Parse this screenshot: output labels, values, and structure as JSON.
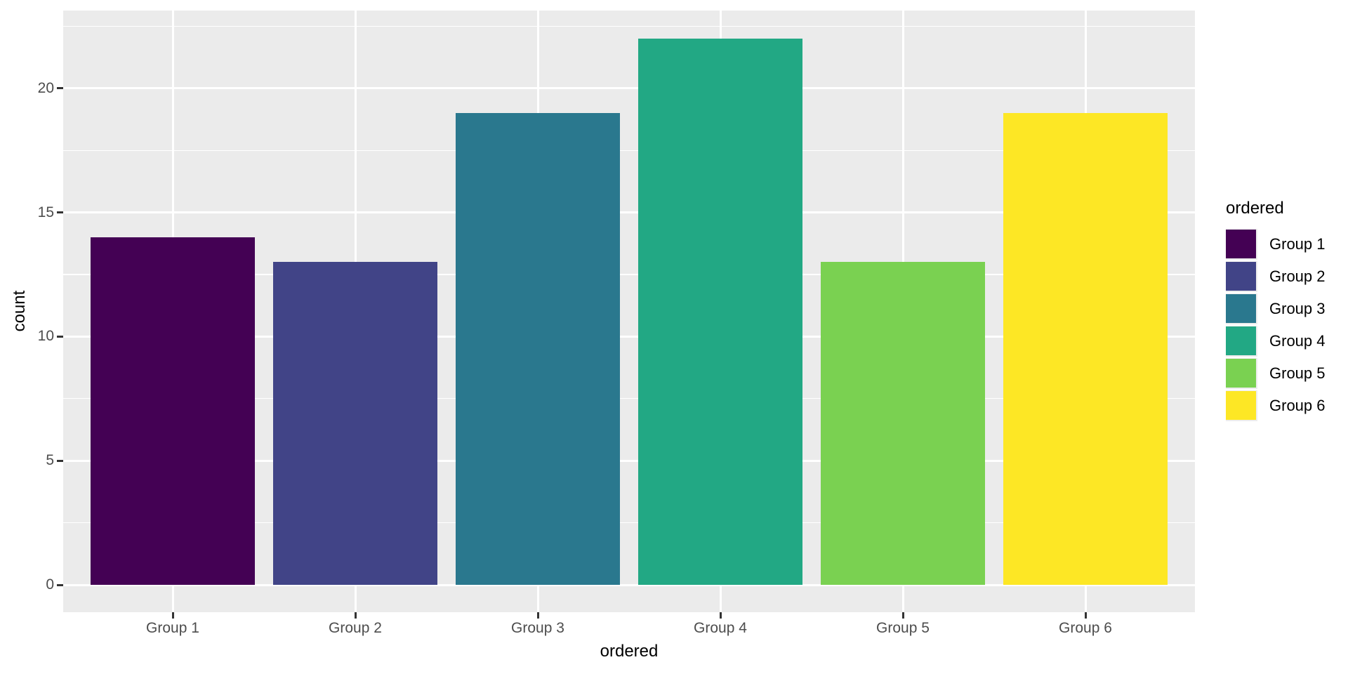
{
  "chart_data": {
    "type": "bar",
    "title": "",
    "xlabel": "ordered",
    "ylabel": "count",
    "categories": [
      "Group 1",
      "Group 2",
      "Group 3",
      "Group 4",
      "Group 5",
      "Group 6"
    ],
    "values": [
      14,
      13,
      19,
      22,
      13,
      19
    ],
    "bar_colors": [
      "#440154",
      "#414487",
      "#2A788E",
      "#22A884",
      "#7AD151",
      "#FDE725"
    ],
    "y_ticks": [
      0,
      5,
      10,
      15,
      20
    ],
    "ylim": [
      0,
      22
    ],
    "grid": true,
    "legend": {
      "position": "right",
      "title": "ordered",
      "entries": [
        {
          "label": "Group 1",
          "color": "#440154"
        },
        {
          "label": "Group 2",
          "color": "#414487"
        },
        {
          "label": "Group 3",
          "color": "#2A788E"
        },
        {
          "label": "Group 4",
          "color": "#22A884"
        },
        {
          "label": "Group 5",
          "color": "#7AD151"
        },
        {
          "label": "Group 6",
          "color": "#FDE725"
        }
      ]
    },
    "style": {
      "panel_bg": "#EBEBEB",
      "gridline_color": "#FFFFFF",
      "tick_color": "#333333",
      "tick_label_color": "#4D4D4D",
      "title_color": "#000000"
    }
  }
}
